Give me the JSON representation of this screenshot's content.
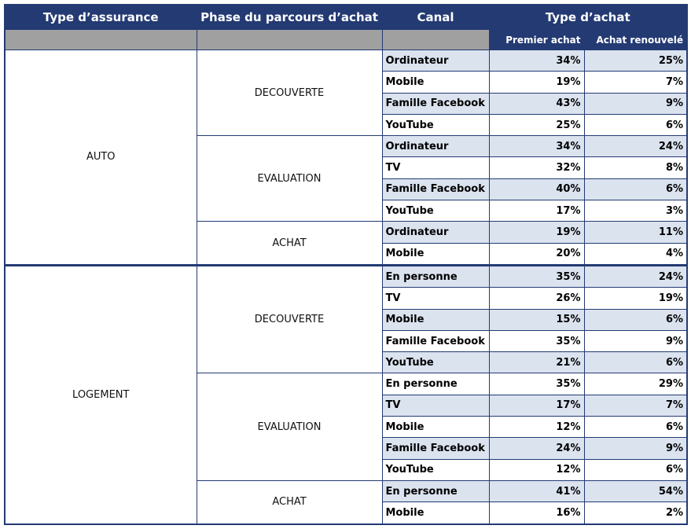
{
  "header": {
    "type_assurance": "Type d’assurance",
    "phase": "Phase du parcours d’achat",
    "canal": "Canal",
    "type_achat": "Type d’achat",
    "premier": "Premier achat",
    "renouvele": "Achat renouvelé"
  },
  "groups": [
    {
      "name": "AUTO",
      "phases": [
        {
          "name": "DECOUVERTE",
          "rows": [
            [
              "Ordinateur",
              "34%",
              "25%"
            ],
            [
              "Mobile",
              "19%",
              "7%"
            ],
            [
              "Famille Facebook",
              "43%",
              "9%"
            ],
            [
              "YouTube",
              "25%",
              "6%"
            ]
          ]
        },
        {
          "name": "EVALUATION",
          "rows": [
            [
              "Ordinateur",
              "34%",
              "24%"
            ],
            [
              "TV",
              "32%",
              "8%"
            ],
            [
              "Famille Facebook",
              "40%",
              "6%"
            ],
            [
              "YouTube",
              "17%",
              "3%"
            ]
          ]
        },
        {
          "name": "ACHAT",
          "rows": [
            [
              "Ordinateur",
              "19%",
              "11%"
            ],
            [
              "Mobile",
              "20%",
              "4%"
            ]
          ]
        }
      ]
    },
    {
      "name": "LOGEMENT",
      "phases": [
        {
          "name": "DECOUVERTE",
          "rows": [
            [
              "En personne",
              "35%",
              "24%"
            ],
            [
              "TV",
              "26%",
              "19%"
            ],
            [
              "Mobile",
              "15%",
              "6%"
            ],
            [
              "Famille Facebook",
              "35%",
              "9%"
            ],
            [
              "YouTube",
              "21%",
              "6%"
            ]
          ]
        },
        {
          "name": "EVALUATION",
          "rows": [
            [
              "En personne",
              "35%",
              "29%"
            ],
            [
              "TV",
              "17%",
              "7%"
            ],
            [
              "Mobile",
              "12%",
              "6%"
            ],
            [
              "Famille Facebook",
              "24%",
              "9%"
            ],
            [
              "YouTube",
              "12%",
              "6%"
            ]
          ]
        },
        {
          "name": "ACHAT",
          "rows": [
            [
              "En personne",
              "41%",
              "54%"
            ],
            [
              "Mobile",
              "16%",
              "2%"
            ]
          ]
        }
      ]
    }
  ]
}
